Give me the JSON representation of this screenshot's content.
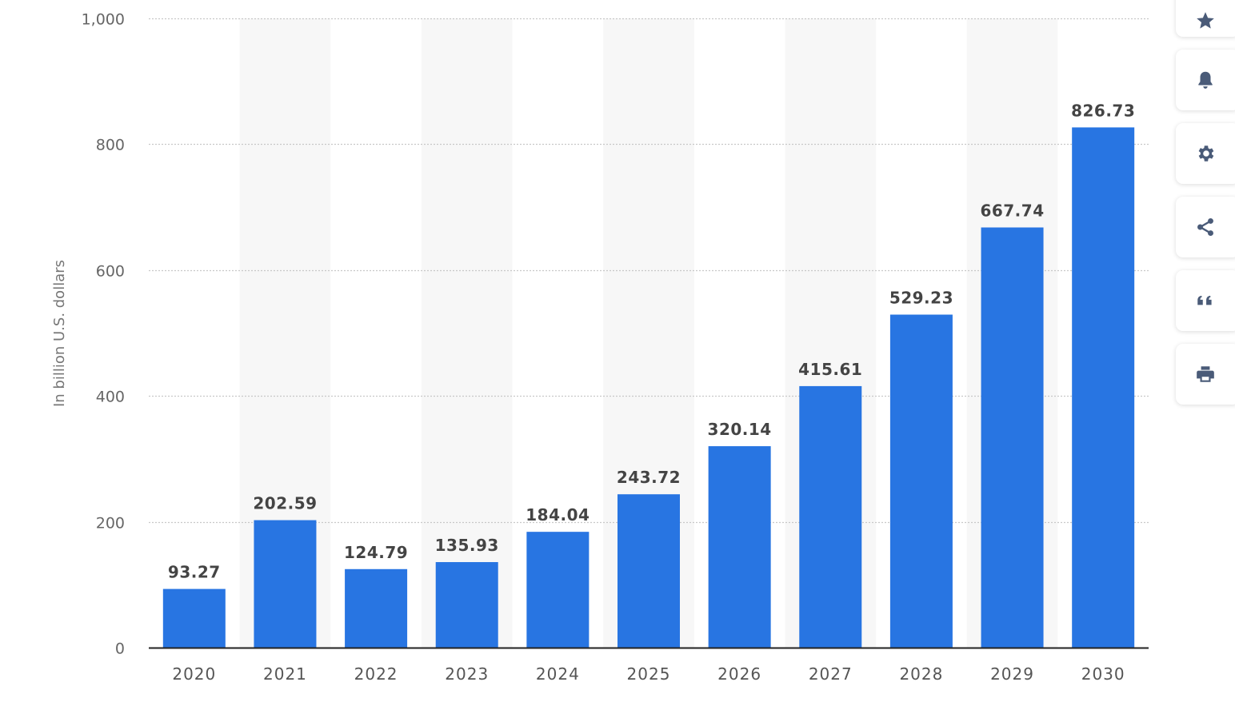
{
  "chart_data": {
    "type": "bar",
    "categories": [
      "2020",
      "2021",
      "2022",
      "2023",
      "2024",
      "2025",
      "2026",
      "2027",
      "2028",
      "2029",
      "2030"
    ],
    "values": [
      93.27,
      202.59,
      124.79,
      135.93,
      184.04,
      243.72,
      320.14,
      415.61,
      529.23,
      667.74,
      826.73
    ],
    "data_labels": [
      "93.27",
      "202.59",
      "124.79",
      "135.93",
      "184.04",
      "243.72",
      "320.14",
      "415.61",
      "529.23",
      "667.74",
      "826.73"
    ],
    "ylabel": "In billion U.S. dollars",
    "ylim": [
      0,
      1000
    ],
    "yticks": [
      0,
      200,
      400,
      600,
      800,
      1000
    ],
    "ytick_labels": [
      "0",
      "200",
      "400",
      "600",
      "800",
      "1,000"
    ],
    "grid": true,
    "bar_color": "#2875e2",
    "band_color": "#f7f7f7"
  },
  "toolbar": {
    "items": [
      {
        "name": "favorite",
        "icon": "star-icon"
      },
      {
        "name": "notify",
        "icon": "bell-icon"
      },
      {
        "name": "settings",
        "icon": "gear-icon"
      },
      {
        "name": "share",
        "icon": "share-icon"
      },
      {
        "name": "cite",
        "icon": "quote-icon"
      },
      {
        "name": "print",
        "icon": "print-icon"
      }
    ],
    "icon_color": "#4a5b78"
  }
}
